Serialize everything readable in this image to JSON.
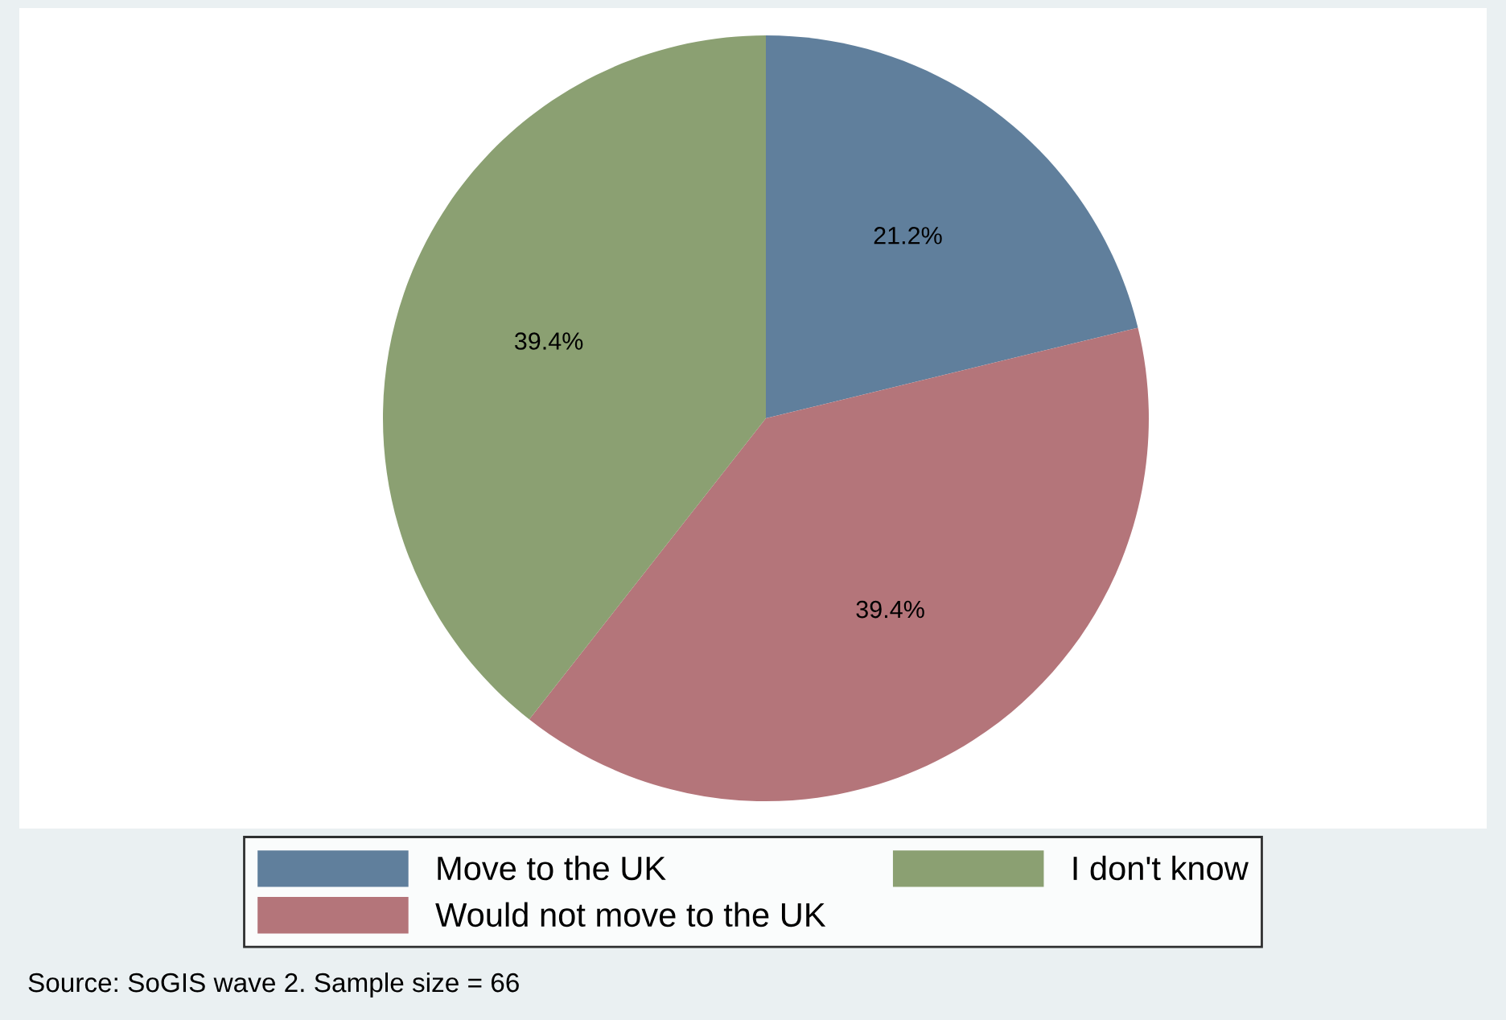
{
  "chart_data": {
    "type": "pie",
    "categories": [
      "Move to the UK",
      "Would not move to the UK",
      "I don't know"
    ],
    "values": [
      21.2,
      39.4,
      39.4
    ],
    "value_labels": [
      "21.2%",
      "39.4%",
      "39.4%"
    ],
    "colors": [
      "#607f9c",
      "#b4757a",
      "#8ba072"
    ],
    "legend": "bottom",
    "annotations": [
      "Source: SoGIS wave 2. Sample size = 66"
    ]
  }
}
